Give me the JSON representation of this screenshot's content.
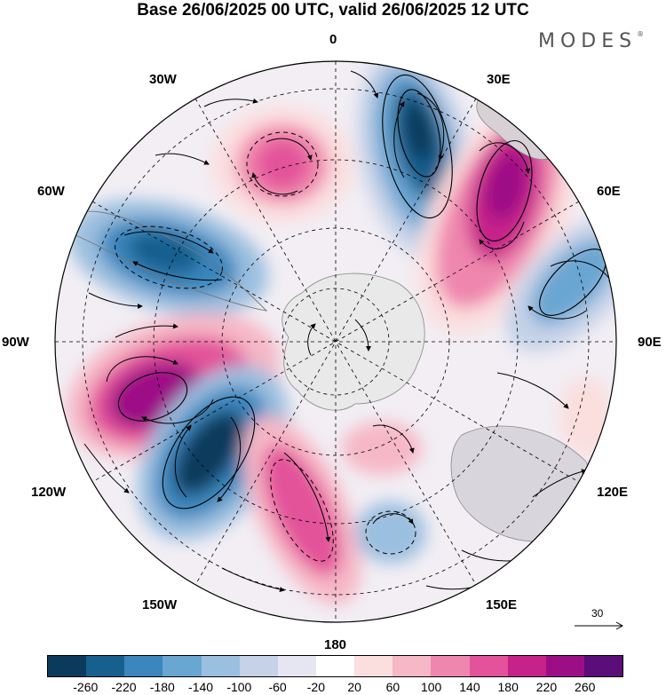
{
  "title": "Base 26/06/2025 00 UTC, valid 26/06/2025 12 UTC",
  "brand": "MODES",
  "brand_mark": "®",
  "longitude_labels": {
    "top": "0",
    "e30": "30E",
    "e60": "60E",
    "e90": "90E",
    "e120": "120E",
    "e150": "150E",
    "bottom": "180",
    "w150": "150W",
    "w120": "120W",
    "w90": "90W",
    "w60": "60W",
    "w30": "30W"
  },
  "reference_vector": "30",
  "colorbar": {
    "colors": [
      "#0b3a5c",
      "#175f8e",
      "#3a86bd",
      "#6aa6d2",
      "#9bbfdf",
      "#c5d2e8",
      "#e6e6f2",
      "#ffffff",
      "#fbdede",
      "#f6b7c6",
      "#ef86ad",
      "#e3529a",
      "#c7228a",
      "#9d0e86",
      "#5b0d7a"
    ],
    "tick_labels": [
      "-260",
      "-220",
      "-180",
      "-140",
      "-100",
      "-60",
      "-20",
      "20",
      "60",
      "100",
      "140",
      "180",
      "220",
      "260"
    ]
  },
  "anomaly_centers": [
    {
      "id": "neg-30E",
      "sign": "negative",
      "strength": 260
    },
    {
      "id": "pos-45E",
      "sign": "positive",
      "strength": 240
    },
    {
      "id": "neg-75E",
      "sign": "negative",
      "strength": 160
    },
    {
      "id": "pos-20W",
      "sign": "positive",
      "strength": 160
    },
    {
      "id": "neg-65W",
      "sign": "negative",
      "strength": 180
    },
    {
      "id": "pos-105W",
      "sign": "positive",
      "strength": 240
    },
    {
      "id": "neg-135W",
      "sign": "negative",
      "strength": 260
    },
    {
      "id": "pos-160W",
      "sign": "positive",
      "strength": 160
    },
    {
      "id": "pos-165E",
      "sign": "positive",
      "strength": 100
    },
    {
      "id": "neg-170E",
      "sign": "negative",
      "strength": 120
    }
  ]
}
